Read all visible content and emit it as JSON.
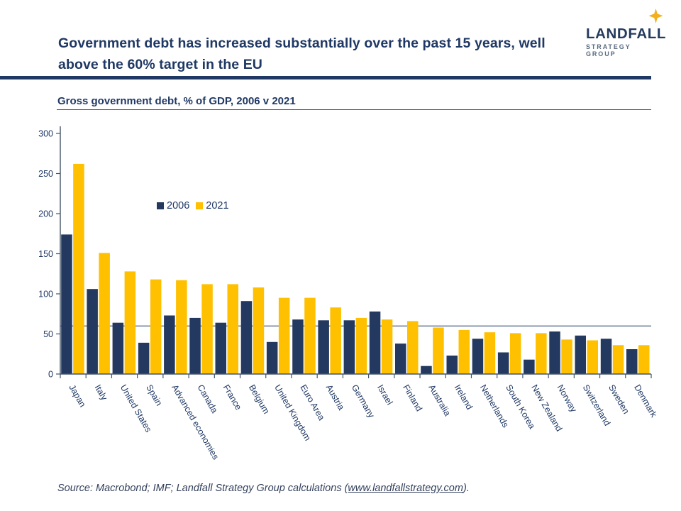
{
  "header": {
    "title_line1": "Government debt has increased substantially over the past 15 years, well",
    "title_line2": "above the 60% target in the EU",
    "logo": {
      "name": "LANDFALL",
      "subtitle": "STRATEGY GROUP",
      "star_icon": "gold-sparkle",
      "navy": "#243B5E",
      "gold": "#F2B01E"
    }
  },
  "chart_data": {
    "type": "bar",
    "title": "Gross government debt, % of GDP, 2006 v 2021",
    "categories": [
      "Japan",
      "Italy",
      "United States",
      "Spain",
      "Advanced economies",
      "Canada",
      "France",
      "Belgium",
      "United Kingdom",
      "Euro Area",
      "Austria",
      "Germany",
      "Israel",
      "Finland",
      "Australia",
      "Ireland",
      "Netherlands",
      "South Korea",
      "New Zealand",
      "Norway",
      "Switzerland",
      "Sweden",
      "Denmark"
    ],
    "series": [
      {
        "name": "2006",
        "color": "#24395F",
        "values": [
          174,
          106,
          64,
          39,
          73,
          70,
          64,
          91,
          40,
          68,
          67,
          67,
          78,
          38,
          10,
          23,
          44,
          27,
          18,
          53,
          48,
          44,
          31
        ]
      },
      {
        "name": "2021",
        "color": "#FFC000",
        "values": [
          262,
          151,
          128,
          118,
          117,
          112,
          112,
          108,
          95,
          95,
          83,
          70,
          68,
          66,
          58,
          55,
          52,
          51,
          51,
          43,
          42,
          36,
          36
        ]
      }
    ],
    "ylabel": "",
    "xlabel": "",
    "ylim": [
      0,
      300
    ],
    "yticks": [
      0,
      50,
      100,
      150,
      200,
      250,
      300
    ],
    "reference_line": 60,
    "legend_position": "inside-upper-left",
    "grid": false,
    "axis_color": "#44546A",
    "label_color": "#1F3864"
  },
  "footer": {
    "source_prefix": "Source: Macrobond; IMF; Landfall Strategy Group calculations (",
    "source_link": "www.landfallstrategy.com",
    "source_suffix": ")."
  }
}
